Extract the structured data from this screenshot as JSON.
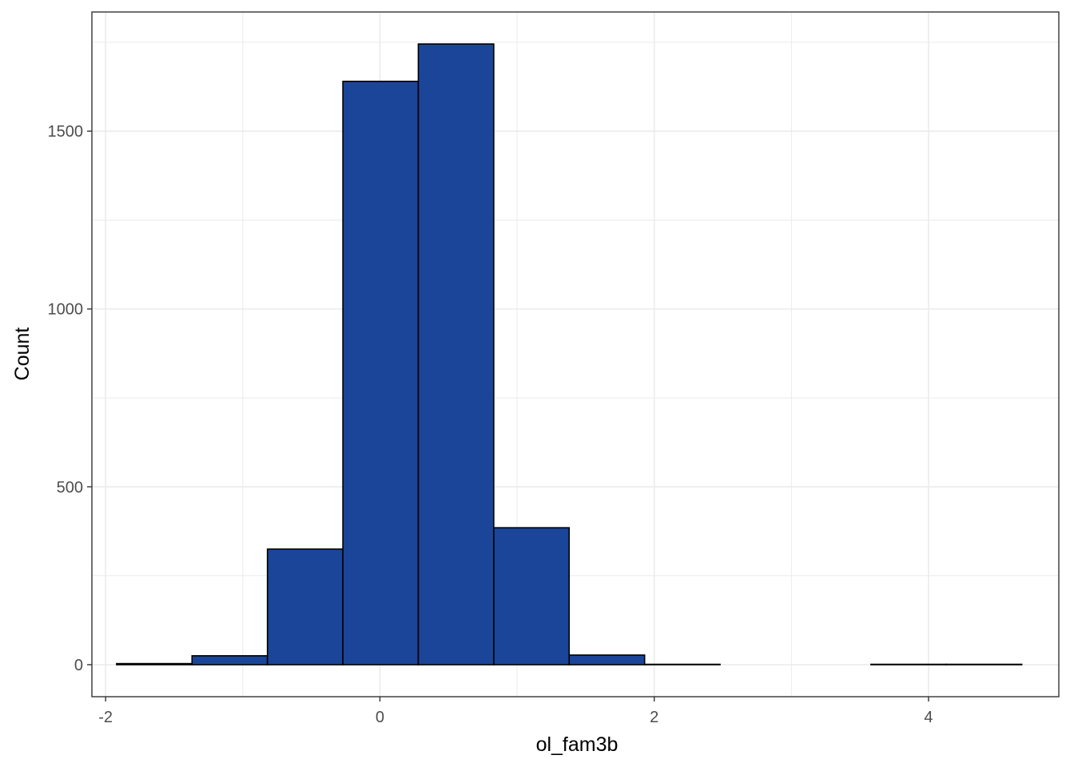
{
  "chart_data": {
    "type": "histogram",
    "xlabel": "ol_fam3b",
    "ylabel": "Count",
    "xlim": [
      -2.1,
      4.95
    ],
    "ylim": [
      -90,
      1835
    ],
    "x_ticks": [
      -2,
      0,
      2,
      4
    ],
    "x_tick_labels": [
      "-2",
      "0",
      "2",
      "4"
    ],
    "x_minor_ticks": [
      -1,
      1,
      3
    ],
    "y_ticks": [
      0,
      500,
      1000,
      1500
    ],
    "y_tick_labels": [
      "0",
      "500",
      "1000",
      "1500"
    ],
    "y_minor_ticks": [
      250,
      750,
      1250,
      1750
    ],
    "grid": true,
    "bar_fill": "#1a4599",
    "bar_outline": "#000000",
    "panel_border": "#333333",
    "grid_color": "#ebebeb",
    "bins": [
      {
        "x0": -1.92,
        "x1": -1.37,
        "count": 3
      },
      {
        "x0": -1.37,
        "x1": -0.82,
        "count": 25
      },
      {
        "x0": -0.82,
        "x1": -0.27,
        "count": 325
      },
      {
        "x0": -0.27,
        "x1": 0.28,
        "count": 1640
      },
      {
        "x0": 0.28,
        "x1": 0.83,
        "count": 1745
      },
      {
        "x0": 0.83,
        "x1": 1.38,
        "count": 385
      },
      {
        "x0": 1.38,
        "x1": 1.93,
        "count": 27
      },
      {
        "x0": 1.93,
        "x1": 2.48,
        "count": 1
      },
      {
        "x0": 2.48,
        "x1": 3.03,
        "count": 0
      },
      {
        "x0": 3.03,
        "x1": 3.58,
        "count": 0
      },
      {
        "x0": 3.58,
        "x1": 4.13,
        "count": 1
      },
      {
        "x0": 4.13,
        "x1": 4.68,
        "count": 1
      }
    ]
  }
}
